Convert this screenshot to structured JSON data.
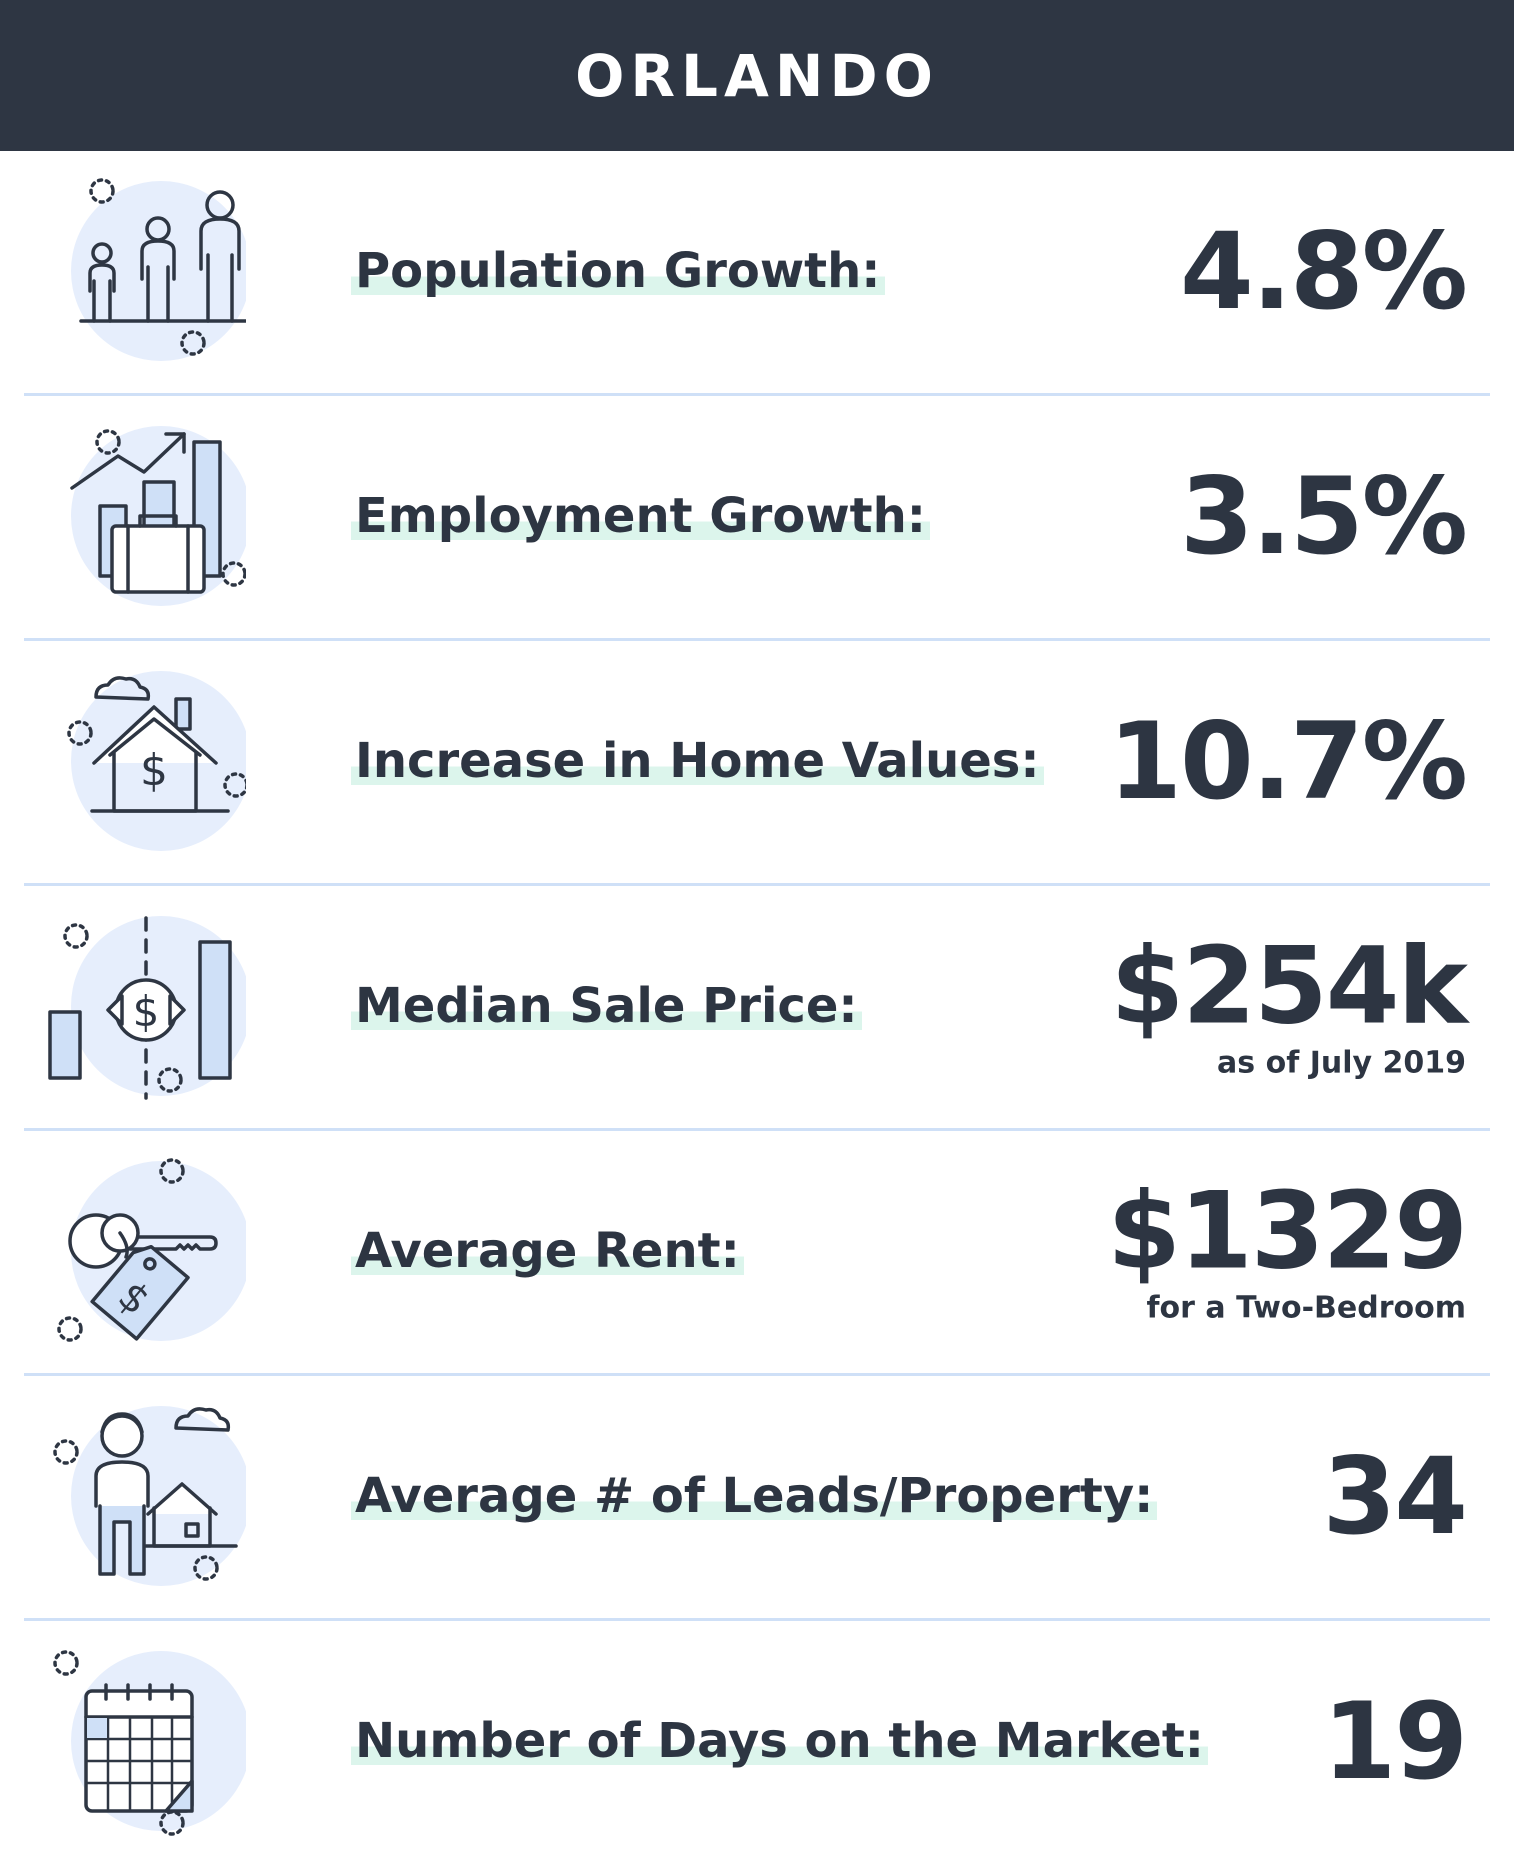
{
  "header": {
    "title": "ORLANDO"
  },
  "stats": [
    {
      "icon": "population-icon",
      "label": "Population Growth:",
      "value": "4.8%",
      "note": ""
    },
    {
      "icon": "employment-icon",
      "label": "Employment Growth:",
      "value": "3.5%",
      "note": ""
    },
    {
      "icon": "home-value-icon",
      "label": "Increase in Home Values:",
      "value": "10.7%",
      "note": ""
    },
    {
      "icon": "sale-price-icon",
      "label": "Median Sale Price:",
      "value": "$254k",
      "note": "as of July 2019"
    },
    {
      "icon": "rent-key-icon",
      "label": "Average Rent:",
      "value": "$1329",
      "note": "for a Two-Bedroom"
    },
    {
      "icon": "leads-icon",
      "label": "Average # of Leads/Property:",
      "value": "34",
      "note": ""
    },
    {
      "icon": "calendar-icon",
      "label": "Number of Days on the Market:",
      "value": "19",
      "note": ""
    }
  ],
  "colors": {
    "header_bg": "#2e3643",
    "text": "#2d3542",
    "divider": "#cfe0f7",
    "highlight": "#dcf5ec",
    "icon_circle": "#e6eefc"
  }
}
